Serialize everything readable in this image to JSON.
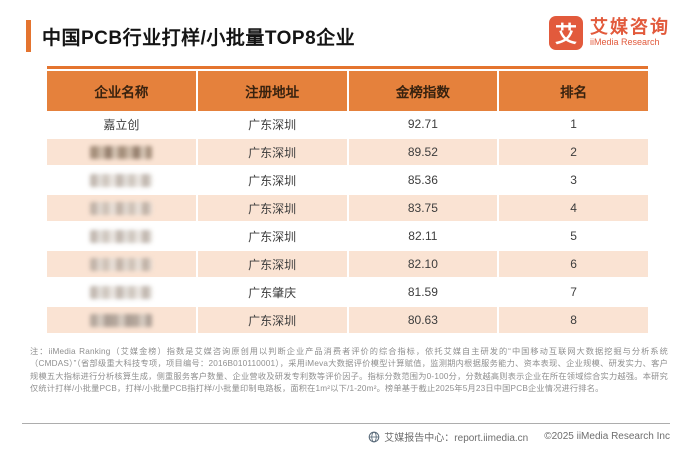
{
  "header": {
    "title": "中国PCB行业打样/小批量TOP8企业",
    "logo": {
      "icon_char": "艾",
      "name_cn": "艾媒咨询",
      "name_en": "iiMedia Research"
    }
  },
  "table": {
    "columns": [
      "企业名称",
      "注册地址",
      "金榜指数",
      "排名"
    ],
    "rows": [
      {
        "company": "嘉立创",
        "redacted": false,
        "address": "广东深圳",
        "index": "92.71",
        "rank": "1"
      },
      {
        "company": "",
        "redacted": true,
        "address": "广东深圳",
        "index": "89.52",
        "rank": "2"
      },
      {
        "company": "",
        "redacted": true,
        "address": "广东深圳",
        "index": "85.36",
        "rank": "3"
      },
      {
        "company": "",
        "redacted": true,
        "address": "广东深圳",
        "index": "83.75",
        "rank": "4"
      },
      {
        "company": "",
        "redacted": true,
        "address": "广东深圳",
        "index": "82.11",
        "rank": "5"
      },
      {
        "company": "",
        "redacted": true,
        "address": "广东深圳",
        "index": "82.10",
        "rank": "6"
      },
      {
        "company": "",
        "redacted": true,
        "address": "广东肇庆",
        "index": "81.59",
        "rank": "7"
      },
      {
        "company": "",
        "redacted": true,
        "address": "广东深圳",
        "index": "80.63",
        "rank": "8"
      }
    ]
  },
  "note": "注：iiMedia Ranking（艾媒金榜）指数是艾媒咨询原创用以判断企业产品消费者评价的综合指标，依托艾媒自主研发的“中国移动互联网大数据挖掘与分析系统（CMDAS）”（省部级重大科技专项，项目编号：2016B010110001），采用iMeva大数据评价模型计算赋值，监测期内根据服务能力、资本表现、企业规模、研发实力、客户规模五大指标进行分析核算生成，侧重服务客户数量、企业营收及研发专利数等评价因子。指标分数范围为0-100分，分数越高则表示企业在所在领域综合实力越强。本研究仅统计打样/小批量PCB，打样/小批量PCB指打样/小批量印制电路板，面积在1m²以下/1-20m²。榜单基于截止2025年5月23日中国PCB企业情况进行排名。",
  "footer": {
    "report_center": "艾媒报告中心：report.iimedia.cn",
    "copyright": "©2025  iiMedia Research  Inc"
  },
  "colors": {
    "accent": "#E4742F",
    "header_bg": "#E5813C",
    "row_alt": "#FAE3D3",
    "logo": "#E25A3C"
  }
}
